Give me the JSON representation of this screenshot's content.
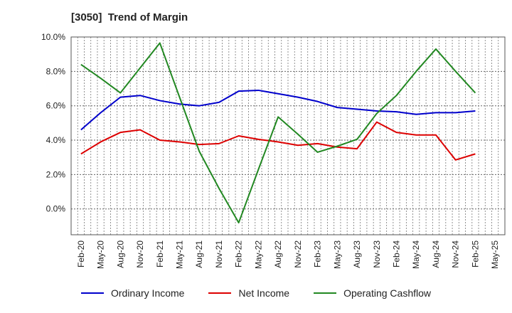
{
  "chart_data": {
    "type": "line",
    "title": "[3050]  Trend of Margin",
    "xlabel": "",
    "ylabel": "",
    "ylim": [
      -1.5,
      10.0
    ],
    "y_ticks": [
      "10.0%",
      "8.0%",
      "6.0%",
      "4.0%",
      "2.0%",
      "0.0%"
    ],
    "y_tick_values": [
      10,
      8,
      6,
      4,
      2,
      0
    ],
    "x_tick_labels": [
      "Feb-20",
      "May-20",
      "Aug-20",
      "Nov-20",
      "Feb-21",
      "May-21",
      "Aug-21",
      "Nov-21",
      "Feb-22",
      "May-22",
      "Aug-22",
      "Nov-22",
      "Feb-23",
      "May-23",
      "Aug-23",
      "Nov-23",
      "Feb-24",
      "May-24",
      "Aug-24",
      "Nov-24",
      "Feb-25",
      "May-25"
    ],
    "grid": true,
    "legend_position": "bottom",
    "series": [
      {
        "name": "Ordinary Income",
        "color": "#0000cc",
        "values": [
          4.6,
          5.6,
          6.5,
          6.6,
          6.3,
          6.1,
          6.0,
          6.2,
          6.85,
          6.9,
          6.7,
          6.5,
          6.25,
          5.9,
          5.8,
          5.7,
          5.65,
          5.5,
          5.6,
          5.6,
          5.7
        ]
      },
      {
        "name": "Net Income",
        "color": "#dd0000",
        "values": [
          3.2,
          3.9,
          4.45,
          4.6,
          4.0,
          3.9,
          3.75,
          3.8,
          4.25,
          4.05,
          3.9,
          3.7,
          3.8,
          3.6,
          3.5,
          5.05,
          4.45,
          4.3,
          4.3,
          2.85,
          3.2
        ]
      },
      {
        "name": "Operating Cashflow",
        "color": "#228822",
        "values": [
          8.4,
          7.6,
          6.75,
          8.2,
          9.65,
          6.5,
          3.35,
          1.2,
          -0.8,
          2.3,
          5.35,
          4.35,
          3.3,
          3.65,
          4.05,
          5.55,
          6.6,
          8.0,
          9.3,
          8.0,
          6.75
        ]
      }
    ]
  }
}
